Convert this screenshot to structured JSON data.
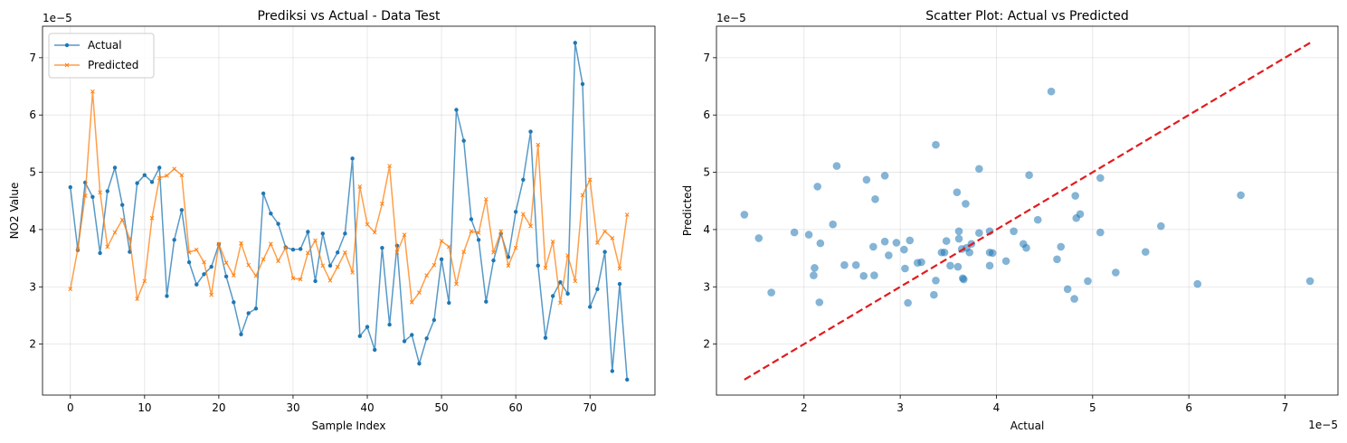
{
  "chart_data": [
    {
      "type": "line",
      "title": "Prediksi vs Actual - Data Test",
      "xlabel": "Sample Index",
      "ylabel": "NO2 Value",
      "y_offset_label": "1e−5",
      "xlim": [
        -3.75,
        78.75
      ],
      "ylim": [
        1.11,
        7.55
      ],
      "xticks": [
        0,
        10,
        20,
        30,
        40,
        50,
        60,
        70
      ],
      "yticks": [
        2,
        3,
        4,
        5,
        6,
        7
      ],
      "grid": true,
      "legend": "upper-left",
      "series": [
        {
          "name": "Actual",
          "color": "#1f77b4",
          "marker": "circle",
          "values": [
            4.74,
            3.64,
            4.82,
            4.57,
            3.59,
            4.67,
            5.08,
            4.43,
            3.61,
            4.81,
            4.95,
            4.83,
            5.08,
            2.84,
            3.82,
            4.34,
            3.43,
            3.04,
            3.22,
            3.35,
            3.74,
            3.18,
            2.73,
            2.17,
            2.54,
            2.62,
            4.63,
            4.28,
            4.1,
            3.69,
            3.65,
            3.66,
            3.96,
            3.1,
            3.93,
            3.37,
            3.6,
            3.93,
            5.24,
            2.14,
            2.3,
            1.9,
            3.68,
            2.34,
            3.72,
            2.05,
            2.16,
            1.66,
            2.1,
            2.42,
            3.48,
            2.72,
            6.09,
            5.55,
            4.18,
            3.82,
            2.74,
            3.46,
            3.93,
            3.52,
            4.31,
            4.87,
            5.71,
            3.37,
            2.11,
            2.84,
            3.08,
            2.88,
            7.26,
            6.54,
            2.65,
            2.96,
            3.61,
            1.53,
            3.05,
            1.38
          ]
        },
        {
          "name": "Predicted",
          "color": "#ff7f0e",
          "marker": "x",
          "values": [
            2.96,
            3.66,
            4.59,
            6.41,
            4.65,
            3.7,
            3.95,
            4.17,
            3.84,
            2.79,
            3.1,
            4.2,
            4.9,
            4.94,
            5.06,
            4.95,
            3.6,
            3.65,
            3.43,
            2.86,
            3.75,
            3.42,
            3.2,
            3.76,
            3.38,
            3.19,
            3.48,
            3.75,
            3.45,
            3.68,
            3.15,
            3.13,
            3.59,
            3.81,
            3.37,
            3.11,
            3.35,
            3.6,
            3.25,
            4.75,
            4.09,
            3.95,
            4.45,
            5.11,
            3.6,
            3.91,
            2.73,
            2.9,
            3.2,
            3.38,
            3.8,
            3.7,
            3.05,
            3.61,
            3.97,
            3.94,
            4.53,
            3.6,
            3.97,
            3.37,
            3.68,
            4.27,
            4.06,
            5.48,
            3.33,
            3.79,
            2.72,
            3.55,
            3.1,
            4.6,
            4.87,
            3.77,
            3.97,
            3.85,
            3.32,
            4.26
          ]
        }
      ]
    },
    {
      "type": "scatter",
      "title": "Scatter Plot: Actual vs Predicted",
      "xlabel": "Actual",
      "ylabel": "Predicted",
      "x_offset_label": "1e−5",
      "y_offset_label": "1e−5",
      "xlim": [
        1.09,
        7.55
      ],
      "ylim": [
        1.11,
        7.55
      ],
      "xticks": [
        2,
        3,
        4,
        5,
        6,
        7
      ],
      "yticks": [
        2,
        3,
        4,
        5,
        6,
        7
      ],
      "grid": true,
      "point_color": "#1f77b4",
      "reference_line": {
        "from": [
          1.38,
          1.38
        ],
        "to": [
          7.26,
          7.26
        ],
        "color": "#e31a1c",
        "style": "dashed"
      },
      "points": [
        [
          4.74,
          2.96
        ],
        [
          3.64,
          3.66
        ],
        [
          4.82,
          4.59
        ],
        [
          4.57,
          6.41
        ],
        [
          3.59,
          4.65
        ],
        [
          4.67,
          3.7
        ],
        [
          5.08,
          3.95
        ],
        [
          4.43,
          4.17
        ],
        [
          3.61,
          3.84
        ],
        [
          4.81,
          2.79
        ],
        [
          4.95,
          3.1
        ],
        [
          4.83,
          4.2
        ],
        [
          5.08,
          4.9
        ],
        [
          2.84,
          4.94
        ],
        [
          3.82,
          5.06
        ],
        [
          4.34,
          4.95
        ],
        [
          3.43,
          3.6
        ],
        [
          3.04,
          3.65
        ],
        [
          3.22,
          3.43
        ],
        [
          3.35,
          2.86
        ],
        [
          3.74,
          3.75
        ],
        [
          3.18,
          3.42
        ],
        [
          2.73,
          3.2
        ],
        [
          2.17,
          3.76
        ],
        [
          2.54,
          3.38
        ],
        [
          2.62,
          3.19
        ],
        [
          4.63,
          3.48
        ],
        [
          4.28,
          3.75
        ],
        [
          4.1,
          3.45
        ],
        [
          3.69,
          3.68
        ],
        [
          3.65,
          3.15
        ],
        [
          3.66,
          3.13
        ],
        [
          3.96,
          3.59
        ],
        [
          3.1,
          3.81
        ],
        [
          3.93,
          3.37
        ],
        [
          3.37,
          3.11
        ],
        [
          3.6,
          3.35
        ],
        [
          3.93,
          3.6
        ],
        [
          5.24,
          3.25
        ],
        [
          2.14,
          4.75
        ],
        [
          2.3,
          4.09
        ],
        [
          1.9,
          3.95
        ],
        [
          3.68,
          4.45
        ],
        [
          2.34,
          5.11
        ],
        [
          3.72,
          3.6
        ],
        [
          2.05,
          3.91
        ],
        [
          2.16,
          2.73
        ],
        [
          1.66,
          2.9
        ],
        [
          2.1,
          3.2
        ],
        [
          2.42,
          3.38
        ],
        [
          3.48,
          3.8
        ],
        [
          2.72,
          3.7
        ],
        [
          6.09,
          3.05
        ],
        [
          5.55,
          3.61
        ],
        [
          4.18,
          3.97
        ],
        [
          3.82,
          3.94
        ],
        [
          2.74,
          4.53
        ],
        [
          3.46,
          3.6
        ],
        [
          3.93,
          3.97
        ],
        [
          3.52,
          3.37
        ],
        [
          4.31,
          3.68
        ],
        [
          4.87,
          4.27
        ],
        [
          5.71,
          4.06
        ],
        [
          3.37,
          5.48
        ],
        [
          2.11,
          3.33
        ],
        [
          2.84,
          3.79
        ],
        [
          3.08,
          2.72
        ],
        [
          2.88,
          3.55
        ],
        [
          7.26,
          3.1
        ],
        [
          6.54,
          4.6
        ],
        [
          2.65,
          4.87
        ],
        [
          2.96,
          3.77
        ],
        [
          3.61,
          3.97
        ],
        [
          1.53,
          3.85
        ],
        [
          3.05,
          3.32
        ],
        [
          1.38,
          4.26
        ]
      ]
    }
  ]
}
